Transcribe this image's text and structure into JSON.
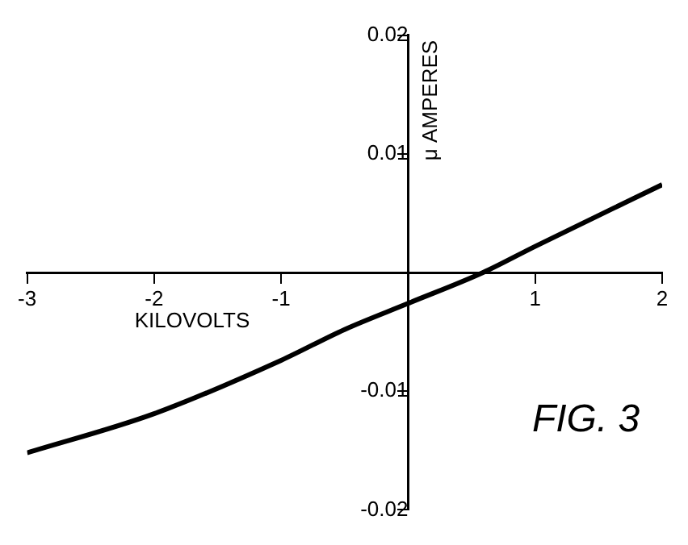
{
  "chart_data": {
    "type": "line",
    "xlabel": "KILOVOLTS",
    "ylabel": "μ AMPERES",
    "annotations": [
      "FIG. 3"
    ],
    "x": [
      -3,
      -2,
      -1,
      -0.5,
      0,
      0.59,
      1,
      2
    ],
    "series": [
      {
        "color": "#000000",
        "values": [
          -0.0152,
          -0.0119,
          -0.0074,
          -0.0048,
          -0.0026,
          0,
          0.0022,
          0.0074
        ]
      }
    ],
    "xlim": [
      -3,
      2
    ],
    "xticks": [
      -3,
      -2,
      -1,
      {
        "value": 0,
        "label": null
      },
      1,
      2
    ],
    "ylim": [
      -0.02,
      0.02
    ],
    "yticks": [
      -0.02,
      -0.01,
      {
        "value": 0,
        "label": null
      },
      0.01,
      0.02
    ],
    "grid": false,
    "legend": false,
    "marker": "none",
    "line_style": "solid"
  }
}
